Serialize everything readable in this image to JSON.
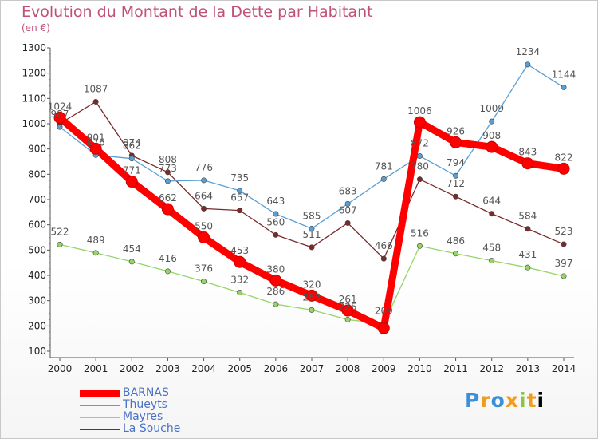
{
  "title": "Evolution du Montant de la Dette par Habitant",
  "unit": "(en €)",
  "logo": "Proxiti",
  "chart_data": {
    "type": "line",
    "x": [
      "2000",
      "2001",
      "2002",
      "2003",
      "2004",
      "2005",
      "2006",
      "2007",
      "2008",
      "2009",
      "2010",
      "2011",
      "2012",
      "2013",
      "2014"
    ],
    "ylim": [
      100,
      1300
    ],
    "yticks": [
      100,
      200,
      300,
      400,
      500,
      600,
      700,
      800,
      900,
      1000,
      1100,
      1200,
      1300
    ],
    "grid": false,
    "legend_position": "bottom-left",
    "series": [
      {
        "name": "BARNAS",
        "color": "#ff0000",
        "values": [
          1024,
          901,
          771,
          662,
          550,
          453,
          380,
          320,
          261,
          191,
          1006,
          926,
          908,
          843,
          822
        ],
        "labels": [
          "1024",
          "901",
          "771",
          "662",
          "550",
          "453",
          "380",
          "320",
          "261",
          "",
          "1006",
          "926",
          "908",
          "843",
          "822"
        ]
      },
      {
        "name": "Thueyts",
        "color": "#5a9fd4",
        "values": [
          987,
          876,
          862,
          773,
          776,
          735,
          643,
          585,
          683,
          781,
          872,
          794,
          1009,
          1234,
          1144
        ],
        "labels": [
          "987",
          "876",
          "862",
          "773",
          "776",
          "735",
          "643",
          "585",
          "683",
          "781",
          "872",
          "794",
          "1009",
          "1234",
          "1144"
        ]
      },
      {
        "name": "Mayres",
        "color": "#96d468",
        "values": [
          522,
          489,
          454,
          416,
          376,
          332,
          286,
          263,
          225,
          209,
          516,
          486,
          458,
          431,
          397
        ],
        "labels": [
          "522",
          "489",
          "454",
          "416",
          "376",
          "332",
          "286",
          "263",
          "225",
          "209",
          "516",
          "486",
          "458",
          "431",
          "397"
        ]
      },
      {
        "name": "La Souche",
        "color": "#7a2a2a",
        "values": [
          1000,
          1087,
          874,
          808,
          664,
          657,
          560,
          511,
          607,
          466,
          780,
          712,
          644,
          584,
          523
        ],
        "labels": [
          "",
          "1087",
          "874",
          "808",
          "664",
          "657",
          "560",
          "511",
          "607",
          "466",
          "780",
          "712",
          "644",
          "584",
          "523"
        ]
      }
    ]
  }
}
